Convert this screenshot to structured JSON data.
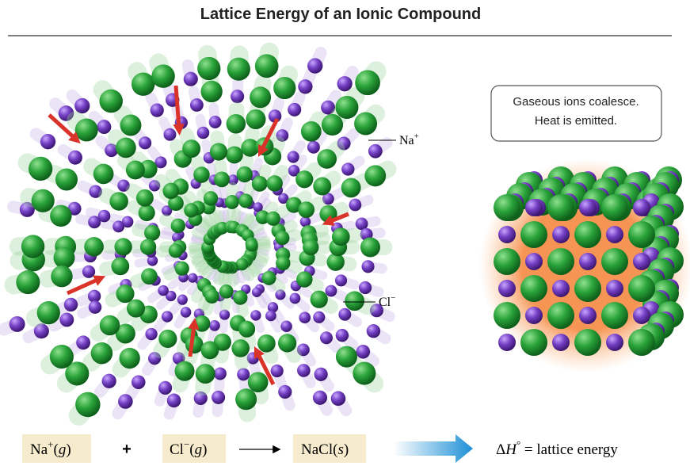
{
  "header": {
    "title": "Lattice Energy of an Ionic Compound"
  },
  "labels": {
    "sodium": {
      "parts": [
        "Na",
        "+"
      ]
    },
    "chloride": {
      "parts": [
        "Cl",
        "−"
      ]
    }
  },
  "callout": {
    "lines": [
      "Gaseous ions coalesce.",
      "Heat is emitted."
    ]
  },
  "equation": {
    "reactant_1": {
      "parts": [
        "Na",
        "+",
        "(",
        "g",
        ")"
      ]
    },
    "plus": "+",
    "reactant_2": {
      "parts": [
        "Cl",
        "−",
        "(",
        "g",
        ")"
      ]
    },
    "product": {
      "parts": [
        "NaCl(",
        "s",
        ")"
      ]
    },
    "result": {
      "parts": [
        "Δ",
        "H",
        "°",
        " = lattice energy"
      ]
    }
  }
}
